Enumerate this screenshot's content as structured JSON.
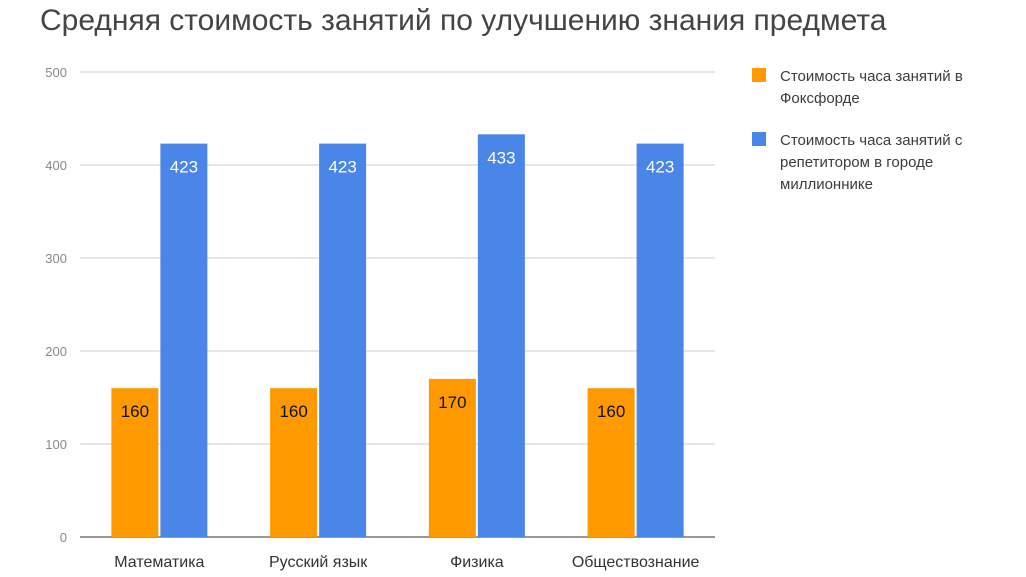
{
  "chart_data": {
    "type": "bar",
    "title": "Средняя стоимость занятий по улучшению знания предмета",
    "xlabel": "",
    "ylabel": "",
    "ylim": [
      0,
      500
    ],
    "yticks": [
      0,
      100,
      200,
      300,
      400,
      500
    ],
    "grid": true,
    "legend_position": "right",
    "categories": [
      "Математика",
      "Русский язык",
      "Физика",
      "Обществознание"
    ],
    "series": [
      {
        "name": "Стоимость часа занятий в Фоксфорде",
        "color": "#FF9900",
        "values": [
          160,
          160,
          170,
          160
        ]
      },
      {
        "name": "Стоимость часа занятий с репетитором в городе миллионнике",
        "color": "#4A86E8",
        "values": [
          423,
          423,
          433,
          423
        ]
      }
    ]
  }
}
